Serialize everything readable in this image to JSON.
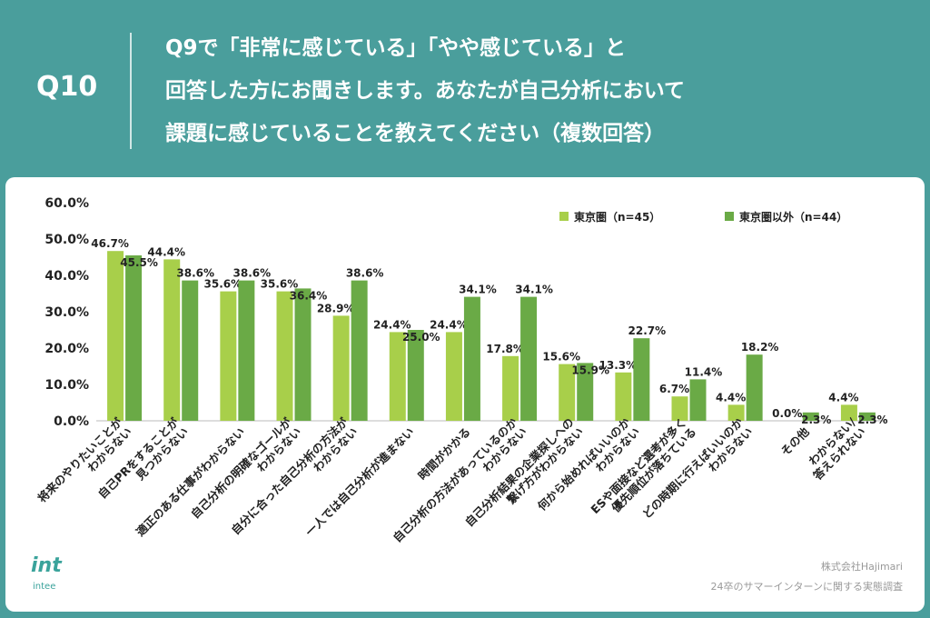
{
  "header": {
    "qnum": "Q10",
    "question_lines": [
      "Q9で「非常に感じている」「やや感じている」と",
      "回答した方にお聞きします。あなたが自己分析において",
      "課題に感じていることを教えてください（複数回答）"
    ]
  },
  "footer": {
    "logo_text": "int",
    "logo_sub": "intee",
    "credit_company": "株式会社Hajimari",
    "credit_survey": "24卒のサマーインターンに関する実態調査"
  },
  "colors": {
    "background": "#4a9e9c",
    "series_tokyo": "#a8cf4a",
    "series_other": "#6aaa46"
  },
  "chart_data": {
    "type": "bar",
    "title": "",
    "xlabel": "",
    "ylabel": "",
    "ylim": [
      0,
      60
    ],
    "yticks": [
      "0.0%",
      "10.0%",
      "20.0%",
      "30.0%",
      "40.0%",
      "50.0%",
      "60.0%"
    ],
    "grid": false,
    "legend_position": "top-right",
    "categories": [
      "将来のやりたいことが\nわからない",
      "自己PRをすることが\n見つからない",
      "適正のある仕事がわからない",
      "自己分析の明確なゴールが\nわからない",
      "自分に合った自己分析の方法が\nわからない",
      "一人では自己分析が進まない",
      "時間がかかる",
      "自己分析の方法があっているのか\nわからない",
      "自己分析結果の企業探しへの\n繋げ方がわからない",
      "何から始めればいいのか\nわからない",
      "ESや面接など選考が多く\n優先順位が落ちている",
      "どの時期に行えばいいのか\nわからない",
      "その他",
      "わからない/\n答えられない"
    ],
    "series": [
      {
        "name": "東京圏（n=45）",
        "values": [
          46.7,
          44.4,
          35.6,
          35.6,
          28.9,
          24.4,
          24.4,
          17.8,
          15.6,
          13.3,
          6.7,
          4.4,
          0.0,
          4.4
        ],
        "labels": [
          "46.7%",
          "44.4%",
          "35.6%",
          "35.6%",
          "28.9%",
          "24.4%",
          "24.4%",
          "17.8%",
          "15.6%",
          "13.3%",
          "6.7%",
          "4.4%",
          "0.0%",
          "4.4%"
        ]
      },
      {
        "name": "東京圏以外（n=44）",
        "values": [
          45.5,
          38.6,
          38.6,
          36.4,
          38.6,
          25.0,
          34.1,
          34.1,
          15.9,
          22.7,
          11.4,
          18.2,
          2.3,
          2.3
        ],
        "labels": [
          "45.5%",
          "38.6%",
          "38.6%",
          "36.4%",
          "38.6%",
          "25.0%",
          "34.1%",
          "34.1%",
          "15.9%",
          "22.7%",
          "11.4%",
          "18.2%",
          "2.3%",
          "2.3%"
        ]
      }
    ]
  }
}
